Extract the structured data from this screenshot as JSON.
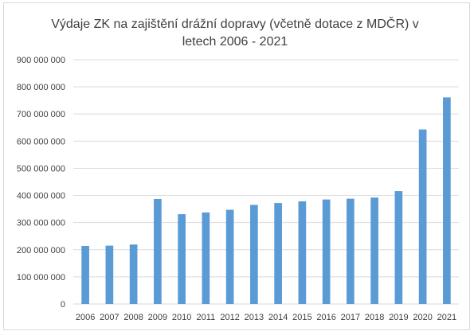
{
  "chart_data": {
    "type": "bar",
    "title": "Výdaje ZK na zajištění drážní dopravy (včetně dotace z MDČR) v\nletech 2006 - 2021",
    "xlabel": "",
    "ylabel": "",
    "categories": [
      "2006",
      "2007",
      "2008",
      "2009",
      "2010",
      "2011",
      "2012",
      "2013",
      "2014",
      "2015",
      "2016",
      "2017",
      "2018",
      "2019",
      "2020",
      "2021"
    ],
    "values": [
      214000000,
      215000000,
      219000000,
      387000000,
      331000000,
      337000000,
      347000000,
      365000000,
      372000000,
      378000000,
      385000000,
      388000000,
      392000000,
      416000000,
      643000000,
      761000000
    ],
    "ylim": [
      0,
      900000000
    ],
    "yticks": [
      0,
      100000000,
      200000000,
      300000000,
      400000000,
      500000000,
      600000000,
      700000000,
      800000000,
      900000000
    ],
    "ytick_labels": [
      "0",
      "100 000 000",
      "200 000 000",
      "300 000 000",
      "400 000 000",
      "500 000 000",
      "600 000 000",
      "700 000 000",
      "800 000 000",
      "900 000 000"
    ],
    "grid": true,
    "legend": "none",
    "bar_color": "#5b9bd5",
    "grid_color": "#d9d9d9",
    "text_color": "#404040"
  }
}
